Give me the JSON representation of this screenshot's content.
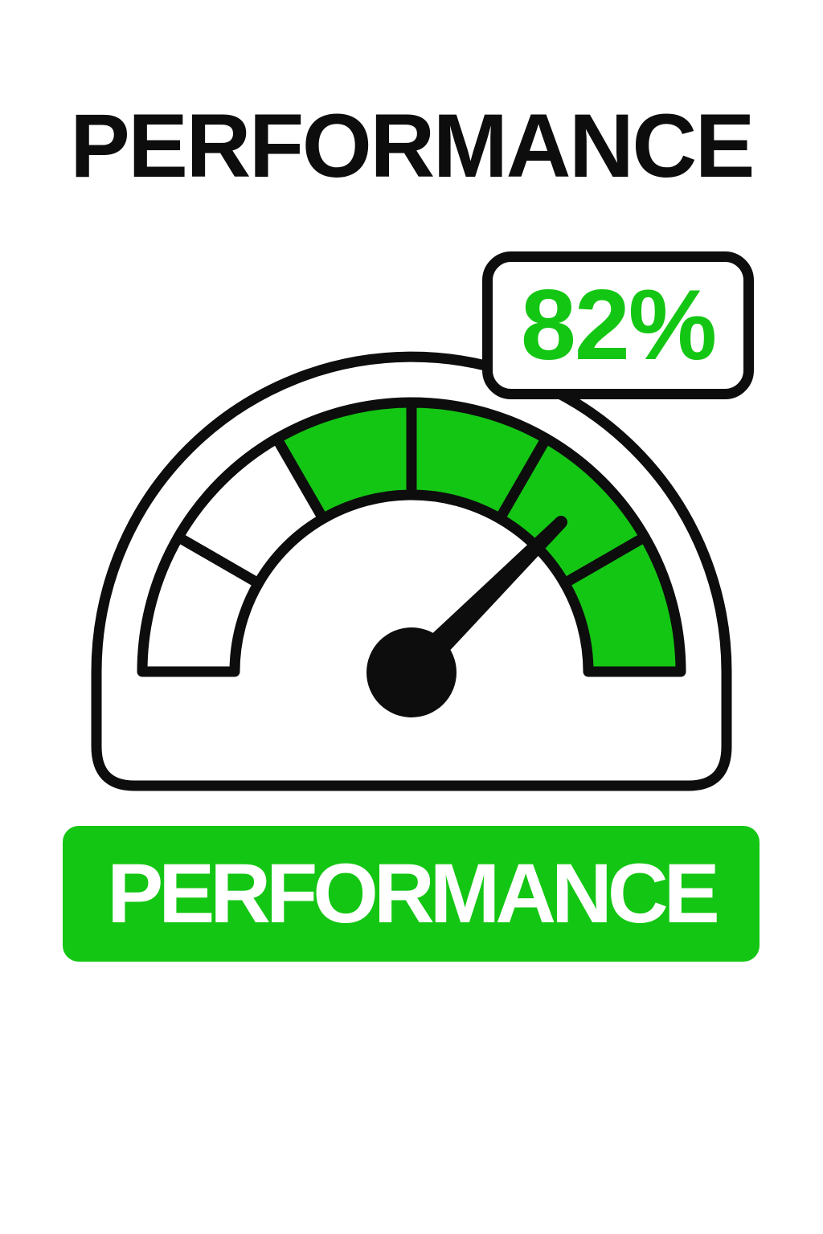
{
  "title": {
    "text": "PERFORMANCE"
  },
  "badge": {
    "value": "82%"
  },
  "banner": {
    "label": "PERFORMANCE"
  },
  "colors": {
    "green": "#14C614",
    "white": "#FFFFFF",
    "ink": "#0D0D0D"
  },
  "chart_data": {
    "type": "gauge",
    "title": "PERFORMANCE",
    "value": 82,
    "unit": "%",
    "value_label": "82%",
    "range": [
      0,
      100
    ],
    "segment_count": 6,
    "segment_sweep_deg": 30,
    "segments": [
      {
        "index": 1,
        "color": "white",
        "filled": false
      },
      {
        "index": 2,
        "color": "white",
        "filled": false
      },
      {
        "index": 3,
        "color": "green",
        "filled": true
      },
      {
        "index": 4,
        "color": "green",
        "filled": true
      },
      {
        "index": 5,
        "color": "green",
        "filled": true
      },
      {
        "index": 6,
        "color": "green",
        "filled": true
      }
    ],
    "needle_angle_deg": 45,
    "legend_position": "none",
    "grid": false
  }
}
